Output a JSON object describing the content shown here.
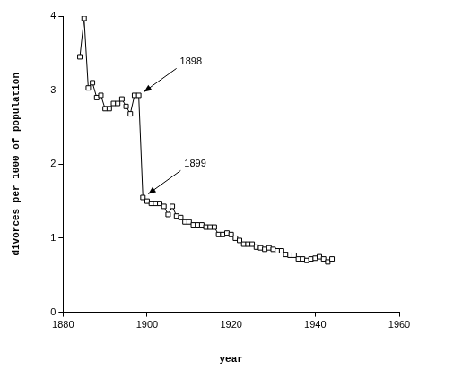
{
  "chart_data": {
    "type": "line",
    "x_label": "year",
    "y_label": "divorces per 1000 of population",
    "x": [
      1884,
      1885,
      1886,
      1887,
      1888,
      1889,
      1890,
      1891,
      1892,
      1893,
      1894,
      1895,
      1896,
      1897,
      1898,
      1899,
      1900,
      1901,
      1902,
      1903,
      1904,
      1905,
      1906,
      1907,
      1908,
      1909,
      1910,
      1911,
      1912,
      1913,
      1914,
      1915,
      1916,
      1917,
      1918,
      1919,
      1920,
      1921,
      1922,
      1923,
      1924,
      1925,
      1926,
      1927,
      1928,
      1929,
      1930,
      1931,
      1932,
      1933,
      1934,
      1935,
      1936,
      1937,
      1938,
      1939,
      1940,
      1941,
      1942,
      1943,
      1944
    ],
    "values": [
      3.45,
      3.97,
      3.03,
      3.1,
      2.9,
      2.93,
      2.75,
      2.75,
      2.82,
      2.82,
      2.88,
      2.78,
      2.68,
      2.93,
      2.93,
      1.55,
      1.5,
      1.47,
      1.47,
      1.47,
      1.43,
      1.32,
      1.43,
      1.3,
      1.28,
      1.22,
      1.22,
      1.18,
      1.18,
      1.18,
      1.15,
      1.15,
      1.15,
      1.05,
      1.05,
      1.07,
      1.05,
      1.0,
      0.97,
      0.92,
      0.92,
      0.92,
      0.88,
      0.87,
      0.85,
      0.87,
      0.85,
      0.83,
      0.83,
      0.78,
      0.77,
      0.77,
      0.72,
      0.72,
      0.7,
      0.72,
      0.73,
      0.75,
      0.72,
      0.68,
      0.72
    ],
    "color": "#000000",
    "marker": "square",
    "xlim": [
      1880,
      1960
    ],
    "xticks": [
      1880,
      1900,
      1920,
      1940,
      1960
    ],
    "ylim": [
      0,
      4
    ],
    "yticks": [
      0,
      1,
      2,
      3,
      4
    ],
    "grid": false,
    "annotations": [
      {
        "text": "1898",
        "x": 1898,
        "y": 2.93
      },
      {
        "text": "1899",
        "x": 1899,
        "y": 1.55
      }
    ]
  }
}
